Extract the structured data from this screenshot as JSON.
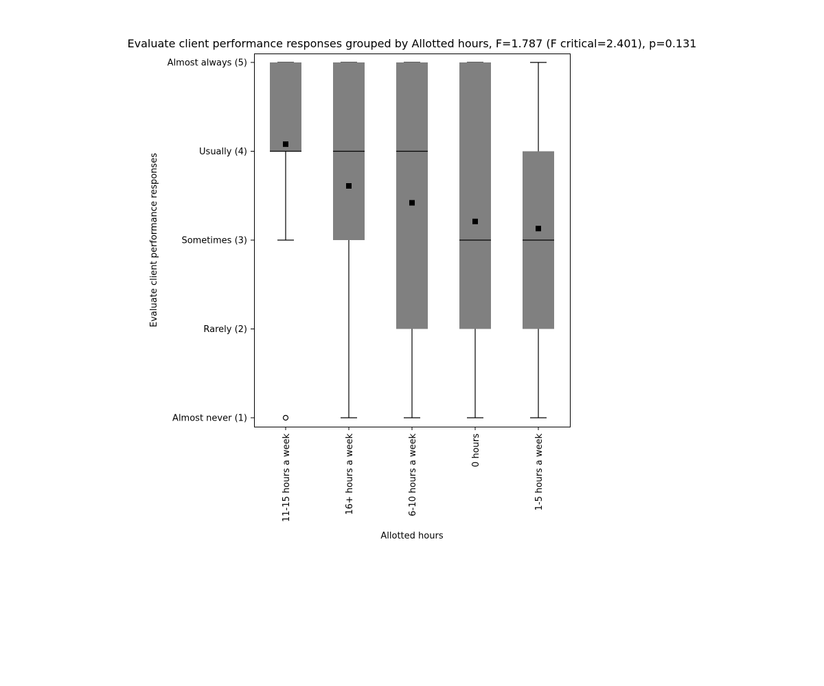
{
  "chart_data": {
    "type": "box",
    "title": "Evaluate client performance responses grouped by Allotted hours, F=1.787 (F critical=2.401), p=0.131",
    "xlabel": "Allotted hours",
    "ylabel": "Evaluate client performance responses",
    "ylim": [
      0.9,
      5.1
    ],
    "yticks": [
      {
        "value": 1,
        "label": "Almost never (1)"
      },
      {
        "value": 2,
        "label": "Rarely (2)"
      },
      {
        "value": 3,
        "label": "Sometimes (3)"
      },
      {
        "value": 4,
        "label": "Usually (4)"
      },
      {
        "value": 5,
        "label": "Almost always (5)"
      }
    ],
    "categories": [
      "11-15 hours a week",
      "16+ hours a week",
      "6-10 hours a week",
      "0 hours",
      "1-5 hours a week"
    ],
    "boxes": [
      {
        "whisker_low": 3,
        "q1": 4,
        "median": 4,
        "q3": 5,
        "whisker_high": 5,
        "mean": 4.08,
        "outliers": [
          1
        ]
      },
      {
        "whisker_low": 1,
        "q1": 3,
        "median": 4,
        "q3": 5,
        "whisker_high": 5,
        "mean": 3.61,
        "outliers": []
      },
      {
        "whisker_low": 1,
        "q1": 2,
        "median": 4,
        "q3": 5,
        "whisker_high": 5,
        "mean": 3.42,
        "outliers": []
      },
      {
        "whisker_low": 1,
        "q1": 2,
        "median": 3,
        "q3": 5,
        "whisker_high": 5,
        "mean": 3.21,
        "outliers": []
      },
      {
        "whisker_low": 1,
        "q1": 2,
        "median": 3,
        "q3": 4,
        "whisker_high": 5,
        "mean": 3.13,
        "outliers": []
      }
    ],
    "box_color": "#808080",
    "line_color": "#000000",
    "grid": false,
    "legend": "none"
  }
}
